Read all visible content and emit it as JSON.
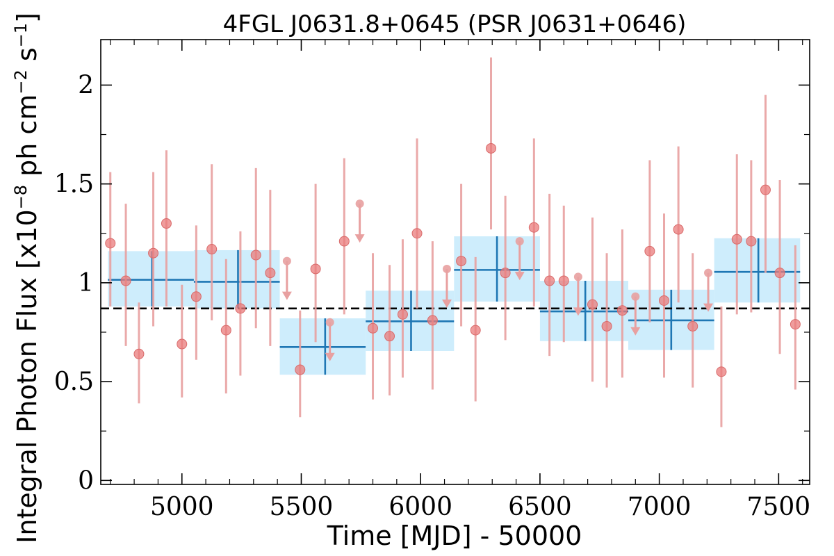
{
  "chart_data": {
    "type": "scatter",
    "title": "4FGL J0631.8+0645 (PSR J0631+0646)",
    "xlabel": "Time [MJD] - 50000",
    "ylabel": "Integral Photon Flux [x10",
    "ylabel_exp1": "−8",
    "ylabel_mid": " ph cm",
    "ylabel_exp2": "−2",
    "ylabel_s": " s",
    "ylabel_exp3": "−1",
    "ylabel_end": "]",
    "xlim": [
      4660,
      7630
    ],
    "ylim": [
      -0.02,
      2.23
    ],
    "x_ticks": [
      5000,
      5500,
      6000,
      6500,
      7000,
      7500
    ],
    "x_tick_labels": [
      "5000",
      "5500",
      "6000",
      "6500",
      "7000",
      "7500"
    ],
    "y_ticks": [
      0,
      0.5,
      1,
      1.5,
      2
    ],
    "y_tick_labels": [
      "0",
      "0.5",
      "1",
      "1.5",
      "2"
    ],
    "grid": false,
    "mean_flux": 0.87,
    "colors": {
      "points": "#e97b7b",
      "errorbars": "#e8a0a0",
      "bins_line": "#1f77b4",
      "bins_fill": "#c6eafb",
      "mean_line": "#000000"
    },
    "points": [
      {
        "x": 4700,
        "y": 1.2,
        "lo": 0.88,
        "hi": 1.56
      },
      {
        "x": 4765,
        "y": 1.01,
        "lo": 0.68,
        "hi": 1.4
      },
      {
        "x": 4820,
        "y": 0.64,
        "lo": 0.39,
        "hi": 0.9
      },
      {
        "x": 4880,
        "y": 1.15,
        "lo": 0.78,
        "hi": 1.56
      },
      {
        "x": 4935,
        "y": 1.3,
        "lo": 0.88,
        "hi": 1.67
      },
      {
        "x": 5000,
        "y": 0.69,
        "lo": 0.42,
        "hi": 0.99
      },
      {
        "x": 5060,
        "y": 0.93,
        "lo": 0.61,
        "hi": 1.29
      },
      {
        "x": 5125,
        "y": 1.17,
        "lo": 0.81,
        "hi": 1.6
      },
      {
        "x": 5185,
        "y": 0.76,
        "lo": 0.44,
        "hi": 1.12
      },
      {
        "x": 5245,
        "y": 0.87,
        "lo": 0.53,
        "hi": 1.26
      },
      {
        "x": 5310,
        "y": 1.14,
        "lo": 0.77,
        "hi": 1.58
      },
      {
        "x": 5370,
        "y": 1.05,
        "lo": 0.68,
        "hi": 1.47
      },
      {
        "x": 5495,
        "y": 0.56,
        "lo": 0.32,
        "hi": 0.86
      },
      {
        "x": 5560,
        "y": 1.07,
        "lo": 0.7,
        "hi": 1.5
      },
      {
        "x": 5680,
        "y": 1.21,
        "lo": 0.84,
        "hi": 1.63
      },
      {
        "x": 5800,
        "y": 0.77,
        "lo": 0.41,
        "hi": 1.15
      },
      {
        "x": 5870,
        "y": 0.73,
        "lo": 0.43,
        "hi": 1.09
      },
      {
        "x": 5925,
        "y": 0.84,
        "lo": 0.52,
        "hi": 1.22
      },
      {
        "x": 5985,
        "y": 1.25,
        "lo": 0.87,
        "hi": 1.73
      },
      {
        "x": 6050,
        "y": 0.81,
        "lo": 0.46,
        "hi": 1.21
      },
      {
        "x": 6170,
        "y": 1.11,
        "lo": 0.78,
        "hi": 1.5
      },
      {
        "x": 6230,
        "y": 0.76,
        "lo": 0.4,
        "hi": 1.13
      },
      {
        "x": 6295,
        "y": 1.68,
        "lo": 1.27,
        "hi": 2.14
      },
      {
        "x": 6355,
        "y": 1.05,
        "lo": 0.71,
        "hi": 1.44
      },
      {
        "x": 6475,
        "y": 1.28,
        "lo": 0.88,
        "hi": 1.73
      },
      {
        "x": 6540,
        "y": 1.01,
        "lo": 0.63,
        "hi": 1.45
      },
      {
        "x": 6600,
        "y": 1.01,
        "lo": 0.7,
        "hi": 1.39
      },
      {
        "x": 6720,
        "y": 0.89,
        "lo": 0.5,
        "hi": 1.33
      },
      {
        "x": 6780,
        "y": 0.78,
        "lo": 0.47,
        "hi": 1.15
      },
      {
        "x": 6845,
        "y": 0.86,
        "lo": 0.52,
        "hi": 1.27
      },
      {
        "x": 6960,
        "y": 1.16,
        "lo": 0.8,
        "hi": 1.62
      },
      {
        "x": 7020,
        "y": 0.91,
        "lo": 0.52,
        "hi": 1.35
      },
      {
        "x": 7080,
        "y": 1.27,
        "lo": 0.9,
        "hi": 1.69
      },
      {
        "x": 7140,
        "y": 0.78,
        "lo": 0.47,
        "hi": 1.15
      },
      {
        "x": 7260,
        "y": 0.55,
        "lo": 0.27,
        "hi": 0.88
      },
      {
        "x": 7325,
        "y": 1.22,
        "lo": 0.84,
        "hi": 1.65
      },
      {
        "x": 7385,
        "y": 1.21,
        "lo": 0.85,
        "hi": 1.62
      },
      {
        "x": 7445,
        "y": 1.47,
        "lo": 1.05,
        "hi": 1.95
      },
      {
        "x": 7505,
        "y": 1.05,
        "lo": 0.64,
        "hi": 1.52
      },
      {
        "x": 7570,
        "y": 0.79,
        "lo": 0.46,
        "hi": 1.19
      }
    ],
    "upper_limits": [
      {
        "x": 5440,
        "y": 1.11
      },
      {
        "x": 5620,
        "y": 0.8
      },
      {
        "x": 5745,
        "y": 1.4
      },
      {
        "x": 6110,
        "y": 1.07
      },
      {
        "x": 6415,
        "y": 1.21
      },
      {
        "x": 6660,
        "y": 1.03
      },
      {
        "x": 6900,
        "y": 0.93
      },
      {
        "x": 7205,
        "y": 1.05
      }
    ],
    "bins": [
      {
        "x0": 4690,
        "x1": 5050,
        "xc": 4875,
        "y": 1.015,
        "lo": 0.88,
        "hi": 1.16
      },
      {
        "x0": 5050,
        "x1": 5410,
        "xc": 5235,
        "y": 1.005,
        "lo": 0.87,
        "hi": 1.165
      },
      {
        "x0": 5410,
        "x1": 5770,
        "xc": 5600,
        "y": 0.675,
        "lo": 0.535,
        "hi": 0.82
      },
      {
        "x0": 5770,
        "x1": 6140,
        "xc": 5960,
        "y": 0.805,
        "lo": 0.655,
        "hi": 0.96
      },
      {
        "x0": 6140,
        "x1": 6500,
        "xc": 6320,
        "y": 1.065,
        "lo": 0.905,
        "hi": 1.235
      },
      {
        "x0": 6500,
        "x1": 6870,
        "xc": 6690,
        "y": 0.855,
        "lo": 0.705,
        "hi": 1.01
      },
      {
        "x0": 6870,
        "x1": 7230,
        "xc": 7050,
        "y": 0.81,
        "lo": 0.66,
        "hi": 0.965
      },
      {
        "x0": 7230,
        "x1": 7590,
        "xc": 7415,
        "y": 1.055,
        "lo": 0.9,
        "hi": 1.225
      }
    ]
  }
}
